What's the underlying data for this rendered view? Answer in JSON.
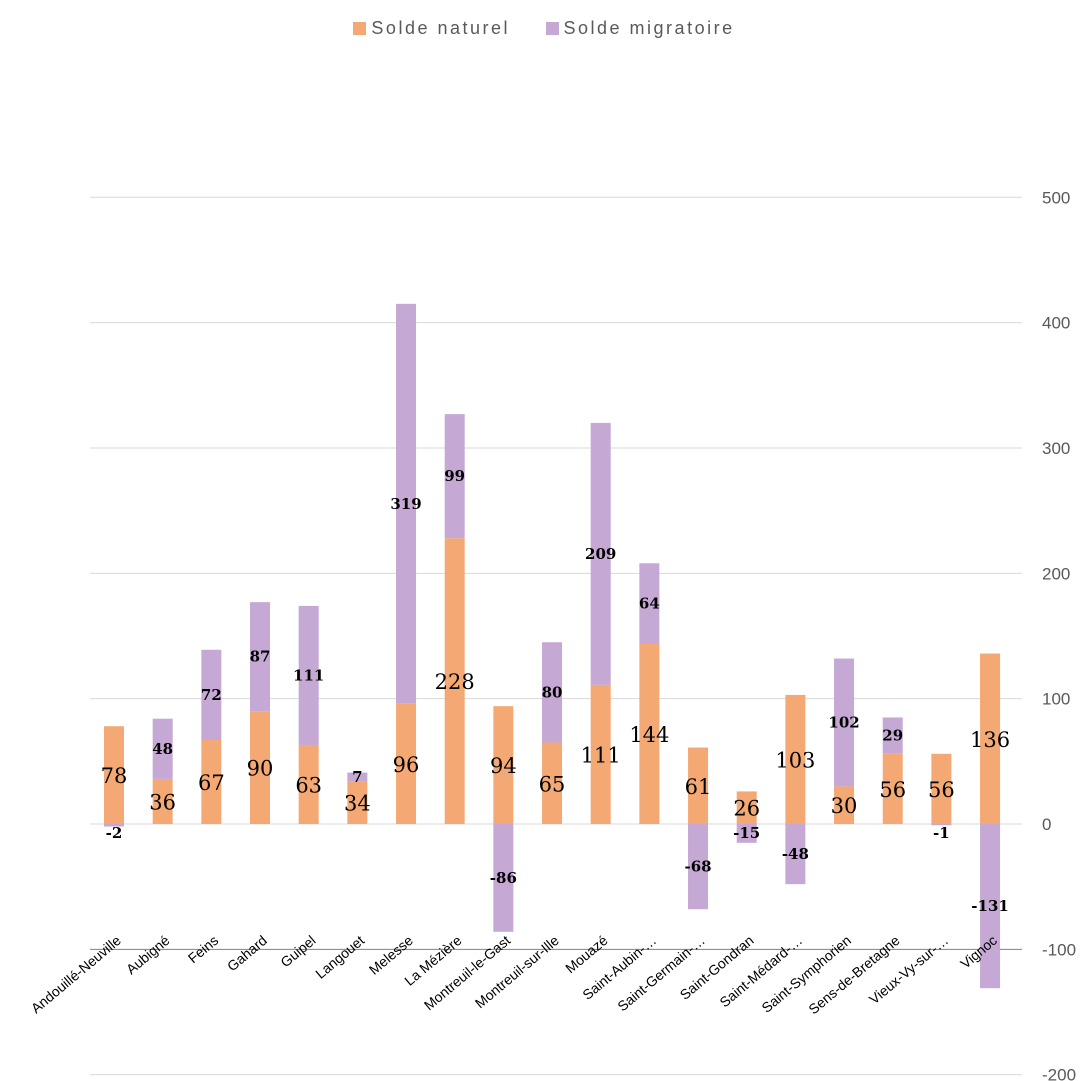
{
  "colors": {
    "naturel": "#F4A974",
    "migratoire": "#C5A8D4",
    "grid": "#D9D9D9",
    "axis": "#808080"
  },
  "legend": {
    "naturel": "Solde naturel",
    "migratoire": "Solde migratoire"
  },
  "chart_data": {
    "type": "bar",
    "stacked": true,
    "categories": [
      "Andouillé-Neuville",
      "Aubigné",
      "Feins",
      "Gahard",
      "Guipel",
      "Langouet",
      "Melesse",
      "La Mézière",
      "Montreuil-le-Gast",
      "Montreuil-sur-Ille",
      "Mouazé",
      "Saint-Aubin-…",
      "Saint-Germain-…",
      "Saint-Gondran",
      "Saint-Médard-…",
      "Saint-Symphorien",
      "Sens-de-Bretagne",
      "Vieux-Vy-sur-…",
      "Vignoc"
    ],
    "series": [
      {
        "name": "Solde naturel",
        "values": [
          78,
          36,
          67,
          90,
          63,
          34,
          96,
          228,
          94,
          65,
          111,
          144,
          61,
          26,
          103,
          30,
          56,
          56,
          136
        ]
      },
      {
        "name": "Solde migratoire",
        "values": [
          -2,
          48,
          72,
          87,
          111,
          7,
          319,
          99,
          -86,
          80,
          209,
          64,
          -68,
          -15,
          -48,
          102,
          29,
          -1,
          -131
        ]
      }
    ],
    "yticks": [
      "500",
      "400",
      "300",
      "200",
      "100",
      "0",
      "-100",
      "-200"
    ],
    "ylim": [
      -200,
      500
    ],
    "axis_position": "right",
    "grid": true,
    "legend_position": "top"
  }
}
